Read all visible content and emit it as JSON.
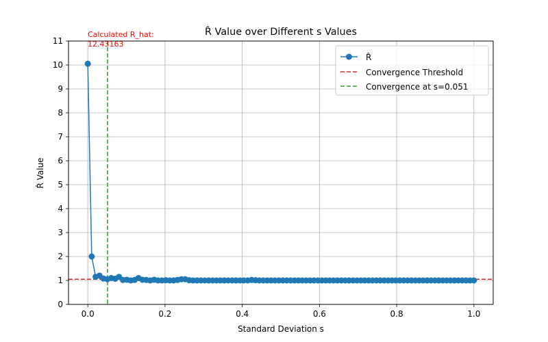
{
  "chart_data": {
    "type": "line",
    "title": "R̂ Value over Different s Values",
    "xlabel": "Standard Deviation s",
    "ylabel": "R̂ Value",
    "xlim": [
      -0.05,
      1.05
    ],
    "ylim": [
      0,
      11
    ],
    "xticks": [
      0.0,
      0.2,
      0.4,
      0.6,
      0.8,
      1.0
    ],
    "xtick_labels": [
      "0.0",
      "0.2",
      "0.4",
      "0.6",
      "0.8",
      "1.0"
    ],
    "yticks": [
      0,
      1,
      2,
      3,
      4,
      5,
      6,
      7,
      8,
      9,
      10,
      11
    ],
    "ytick_labels": [
      "0",
      "1",
      "2",
      "3",
      "4",
      "5",
      "6",
      "7",
      "8",
      "9",
      "10",
      "11"
    ],
    "grid": true,
    "legend_position": "top-right",
    "series": [
      {
        "name": "R̂",
        "color": "#1f77b4",
        "marker": "circle",
        "x": [
          0.0,
          0.0101,
          0.0202,
          0.0303,
          0.0404,
          0.0505,
          0.0606,
          0.0707,
          0.0808,
          0.0909,
          0.101,
          0.1111,
          0.1212,
          0.1313,
          0.1414,
          0.1515,
          0.1616,
          0.1717,
          0.1818,
          0.1919,
          0.202,
          0.2121,
          0.2222,
          0.2323,
          0.2424,
          0.2525,
          0.2626,
          0.2727,
          0.2828,
          0.2929,
          0.303,
          0.3131,
          0.3232,
          0.3333,
          0.3434,
          0.3535,
          0.3636,
          0.3737,
          0.3838,
          0.3939,
          0.404,
          0.4141,
          0.4242,
          0.4343,
          0.4444,
          0.4545,
          0.4646,
          0.4747,
          0.4848,
          0.4949,
          0.5051,
          0.5152,
          0.5253,
          0.5354,
          0.5455,
          0.5556,
          0.5657,
          0.5758,
          0.5859,
          0.596,
          0.6061,
          0.6162,
          0.6263,
          0.6364,
          0.6465,
          0.6566,
          0.6667,
          0.6768,
          0.6869,
          0.697,
          0.7071,
          0.7172,
          0.7273,
          0.7374,
          0.7475,
          0.7576,
          0.7677,
          0.7778,
          0.7879,
          0.798,
          0.8081,
          0.8182,
          0.8283,
          0.8384,
          0.8485,
          0.8586,
          0.8687,
          0.8788,
          0.8889,
          0.899,
          0.9091,
          0.9192,
          0.9293,
          0.9394,
          0.9495,
          0.9596,
          0.9697,
          0.9798,
          0.9899,
          1.0
        ],
        "y": [
          10.05,
          2.0,
          1.15,
          1.2,
          1.08,
          1.05,
          1.1,
          1.07,
          1.15,
          1.02,
          1.03,
          1.0,
          1.02,
          1.1,
          1.03,
          1.02,
          1.0,
          1.03,
          1.0,
          1.0,
          1.01,
          1.0,
          1.0,
          1.02,
          1.05,
          1.05,
          1.01,
          1.0,
          1.0,
          1.0,
          1.0,
          1.0,
          1.0,
          1.0,
          1.0,
          1.0,
          1.0,
          1.0,
          1.0,
          1.0,
          1.0,
          1.0,
          1.02,
          1.01,
          1.0,
          1.0,
          1.0,
          1.0,
          1.0,
          1.0,
          1.0,
          1.0,
          1.0,
          1.0,
          1.0,
          1.0,
          1.0,
          1.0,
          1.0,
          1.0,
          1.0,
          1.0,
          1.0,
          1.0,
          1.0,
          1.0,
          1.0,
          1.0,
          1.0,
          1.0,
          1.0,
          1.0,
          1.0,
          1.0,
          1.0,
          1.0,
          1.0,
          1.0,
          1.0,
          1.0,
          1.0,
          1.0,
          1.0,
          1.0,
          1.0,
          1.0,
          1.0,
          1.0,
          1.0,
          1.0,
          1.0,
          1.0,
          1.0,
          1.0,
          1.0,
          1.0,
          1.0,
          1.0,
          1.0,
          1.0
        ]
      }
    ],
    "reference_lines": [
      {
        "name": "Convergence Threshold",
        "orientation": "horizontal",
        "value": 1.05,
        "color": "#d62728",
        "style": "dashed"
      },
      {
        "name": "Convergence at s=0.051",
        "orientation": "vertical",
        "value": 0.051,
        "color": "#2ca02c",
        "style": "dashed"
      }
    ],
    "annotation": {
      "lines": [
        "Calculated R_hat:",
        "12.43163"
      ],
      "x": 0.0,
      "y": 11,
      "color": "#ff0000"
    }
  }
}
